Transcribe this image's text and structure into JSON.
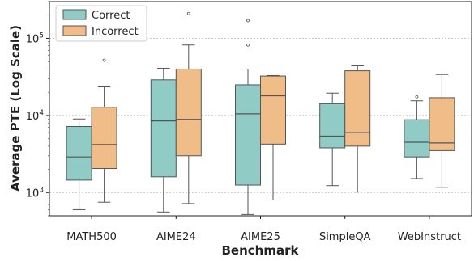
{
  "chart_data": {
    "type": "boxplot",
    "xlabel": "Benchmark",
    "ylabel": "Average PTE (Log Scale)",
    "yscale": "log",
    "ylim": [
      500,
      300000
    ],
    "yticks": [
      {
        "value": 1000,
        "base": "10",
        "exp": "3"
      },
      {
        "value": 10000,
        "base": "10",
        "exp": "4"
      },
      {
        "value": 100000,
        "base": "10",
        "exp": "5"
      }
    ],
    "grid": "horizontal dashed",
    "legend_position": "top-left",
    "categories": [
      "MATH500",
      "AIME24",
      "AIME25",
      "SimpleQA",
      "WebInstruct"
    ],
    "series": [
      {
        "name": "Correct",
        "color": "#90cbc6",
        "boxes": [
          {
            "whislo": 600,
            "q1": 1450,
            "med": 2900,
            "q3": 7200,
            "whishi": 9000,
            "fliers": []
          },
          {
            "whislo": 560,
            "q1": 1600,
            "med": 8500,
            "q3": 29000,
            "whishi": 41000,
            "fliers": []
          },
          {
            "whislo": 520,
            "q1": 1250,
            "med": 10500,
            "q3": 25000,
            "whishi": 40000,
            "fliers": [
              82000,
              170000
            ]
          },
          {
            "whislo": 1230,
            "q1": 3800,
            "med": 5400,
            "q3": 14200,
            "whishi": 19500,
            "fliers": []
          },
          {
            "whislo": 1520,
            "q1": 2900,
            "med": 4500,
            "q3": 8800,
            "whishi": 15500,
            "fliers": [
              17500
            ]
          }
        ]
      },
      {
        "name": "Incorrect",
        "color": "#f0bc88",
        "boxes": [
          {
            "whislo": 750,
            "q1": 2050,
            "med": 4200,
            "q3": 12800,
            "whishi": 23500,
            "fliers": [
              52000
            ]
          },
          {
            "whislo": 720,
            "q1": 3000,
            "med": 8900,
            "q3": 40000,
            "whishi": 82000,
            "fliers": [
              210000
            ]
          },
          {
            "whislo": 800,
            "q1": 4250,
            "med": 18000,
            "q3": 32500,
            "whishi": 33000,
            "fliers": []
          },
          {
            "whislo": 1020,
            "q1": 4000,
            "med": 6000,
            "q3": 38000,
            "whishi": 44000,
            "fliers": []
          },
          {
            "whislo": 1170,
            "q1": 3500,
            "med": 4400,
            "q3": 17000,
            "whishi": 34000,
            "fliers": []
          }
        ]
      }
    ]
  }
}
